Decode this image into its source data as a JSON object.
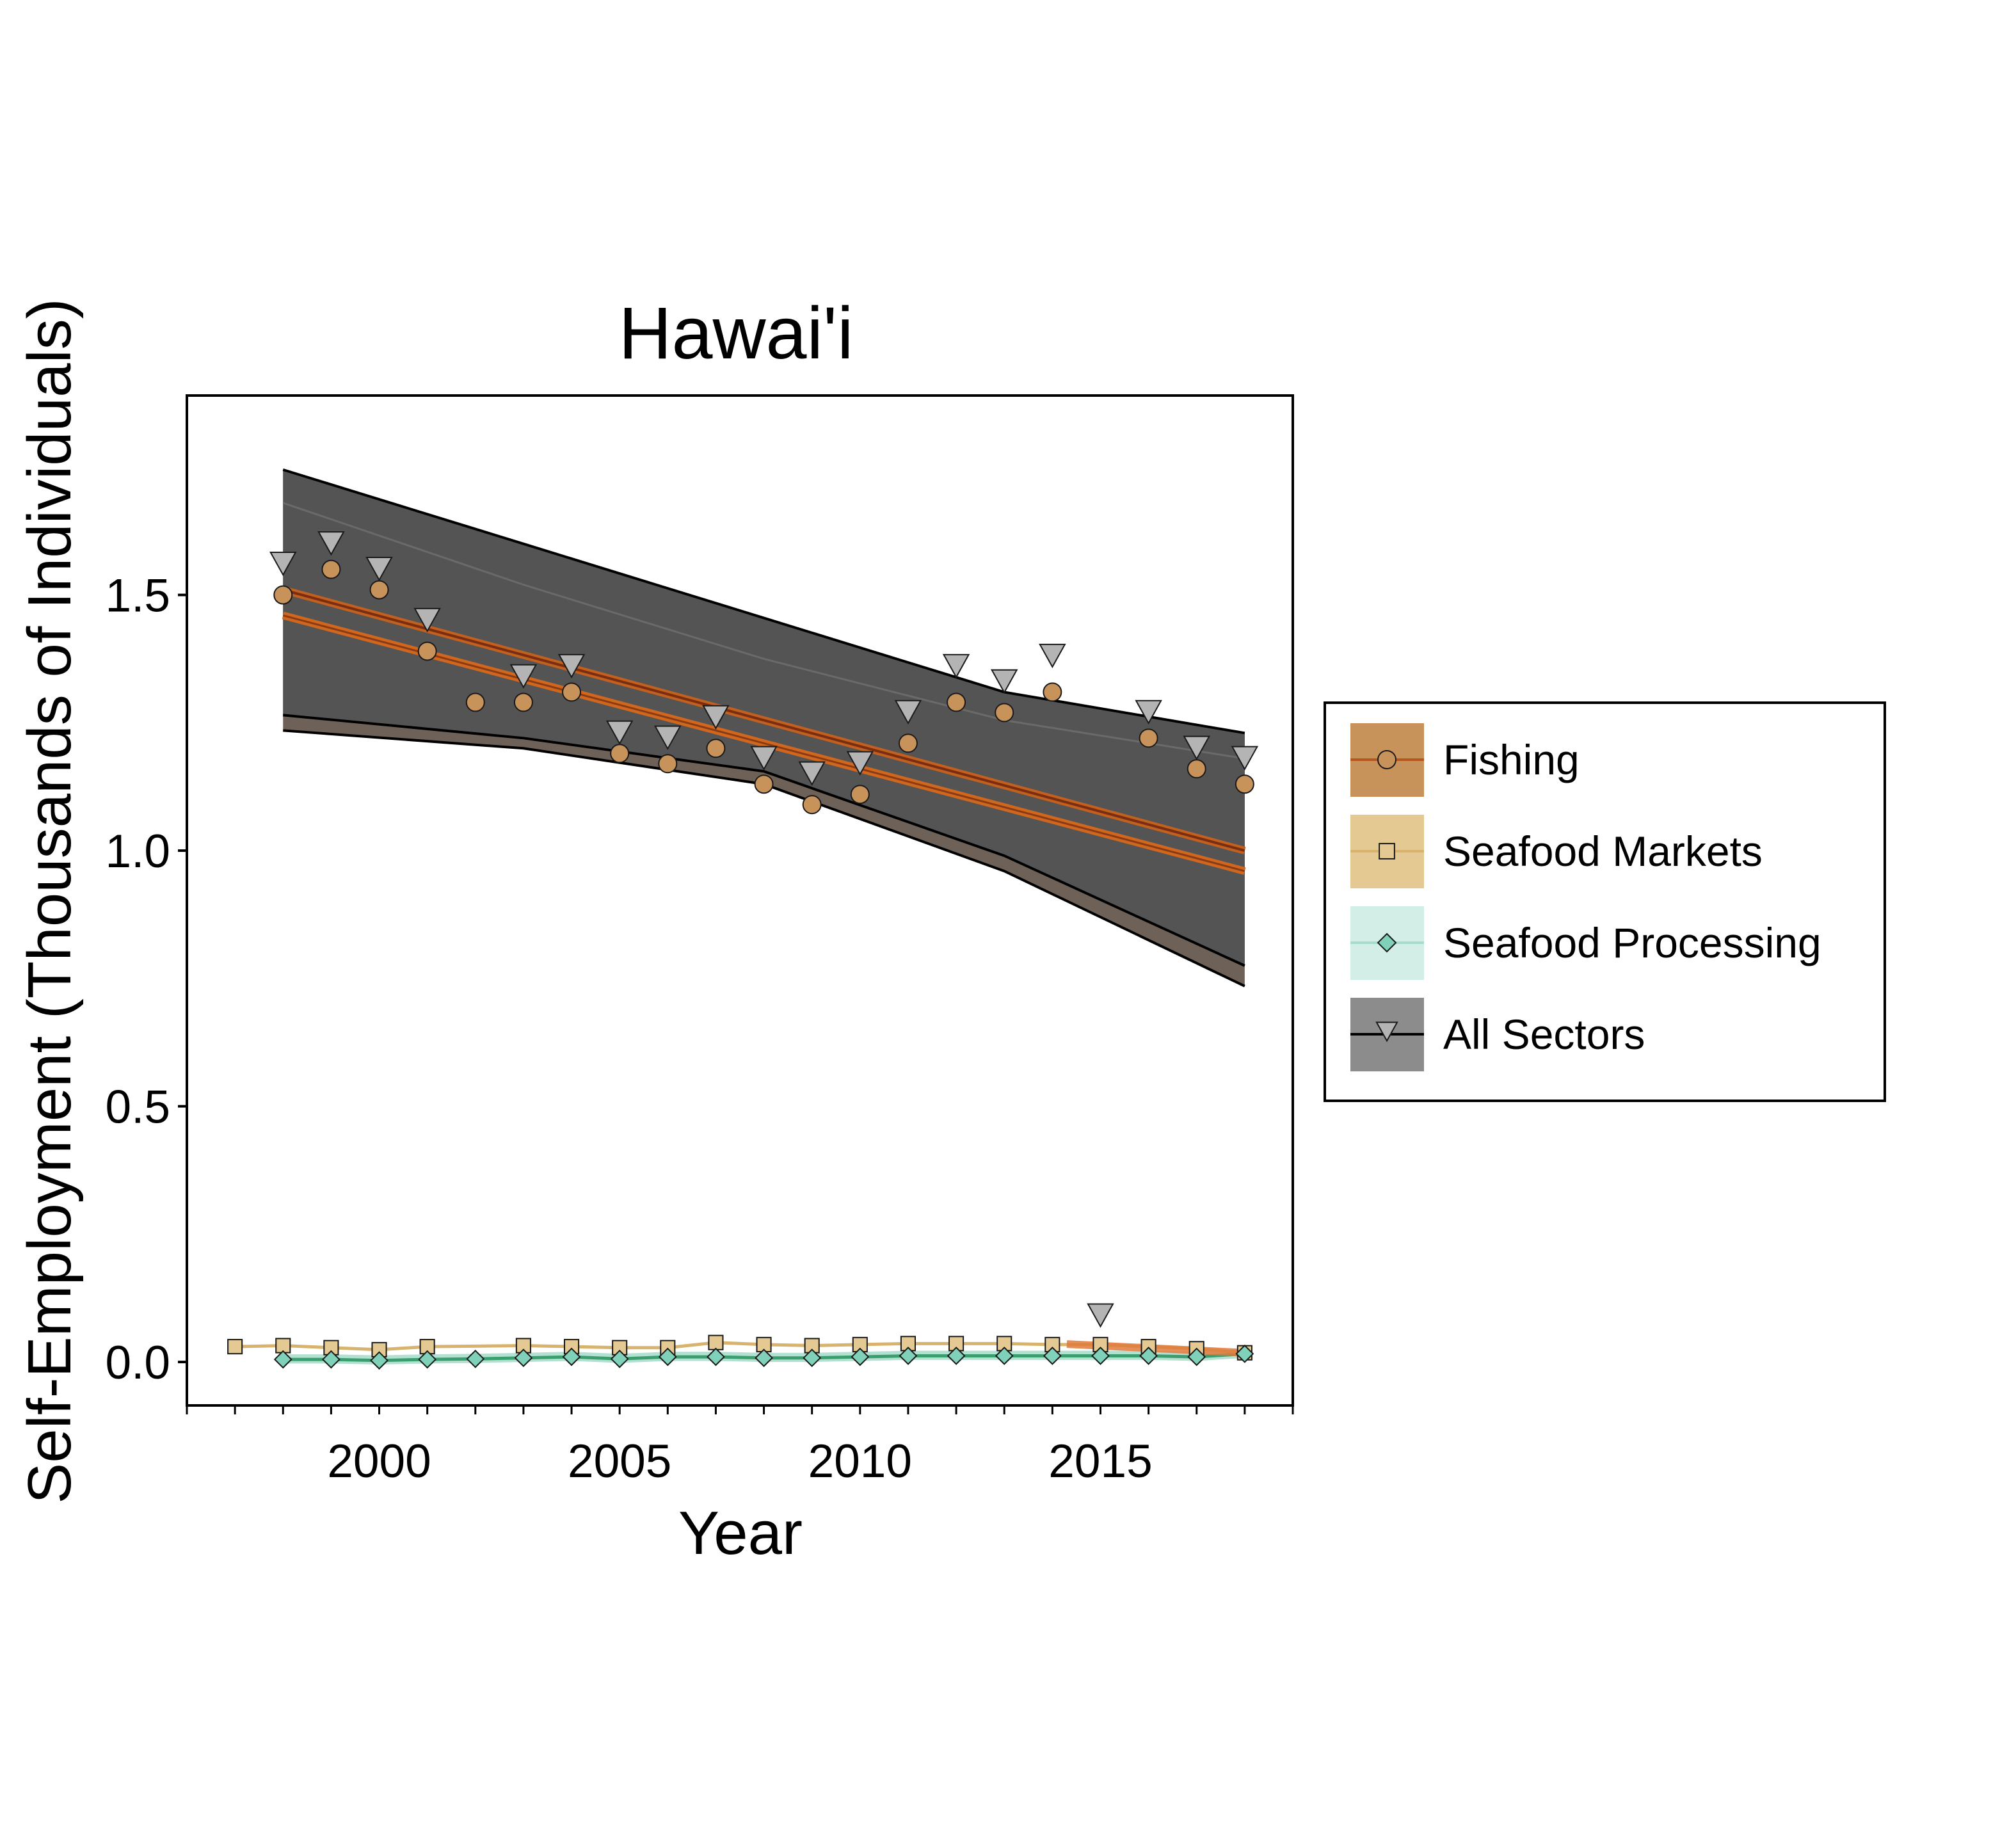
{
  "chart_data": {
    "type": "line",
    "title": "Hawai'i",
    "xlabel": "Year",
    "ylabel": "Self-Employment (Thousands of Individuals)",
    "xlim": [
      1996,
      2019
    ],
    "ylim": [
      -0.085,
      1.89
    ],
    "x_ticks": [
      2000,
      2005,
      2010,
      2015
    ],
    "y_ticks": [
      0.0,
      0.5,
      1.0,
      1.5
    ],
    "y_tick_labels": [
      "0.0",
      "0.5",
      "1.0",
      "1.5"
    ],
    "grid": false,
    "legend_position": "right",
    "series": [
      {
        "name": "Fishing",
        "marker": "circle",
        "color": "#c8935a",
        "line_color": "#b5561f",
        "x": [
          1998,
          1999,
          2000,
          2001,
          2002,
          2003,
          2004,
          2005,
          2006,
          2007,
          2008,
          2009,
          2010,
          2011,
          2012,
          2013,
          2014,
          2016,
          2017,
          2018
        ],
        "values": [
          1.5,
          1.55,
          1.51,
          1.39,
          1.29,
          1.29,
          1.31,
          1.19,
          1.17,
          1.2,
          1.13,
          1.09,
          1.11,
          1.21,
          1.29,
          1.27,
          1.31,
          1.22,
          1.16,
          1.13
        ],
        "trend": [
          [
            1998,
            1.51
          ],
          [
            2018,
            1.0
          ]
        ],
        "trend2": [
          [
            1998,
            1.46
          ],
          [
            2018,
            0.96
          ]
        ]
      },
      {
        "name": "Seafood Markets",
        "marker": "square",
        "color": "#e5c992",
        "line_color": "#d7b36e",
        "x": [
          1997,
          1998,
          1999,
          2000,
          2001,
          2003,
          2004,
          2005,
          2006,
          2007,
          2008,
          2009,
          2010,
          2011,
          2012,
          2013,
          2014,
          2015,
          2016,
          2017,
          2018
        ],
        "values": [
          0.03,
          0.032,
          0.028,
          0.024,
          0.03,
          0.032,
          0.03,
          0.028,
          0.028,
          0.038,
          0.034,
          0.032,
          0.034,
          0.036,
          0.036,
          0.036,
          0.034,
          0.034,
          0.03,
          0.026,
          0.018
        ]
      },
      {
        "name": "Seafood Processing",
        "marker": "diamond",
        "color": "#7fd1b9",
        "line_color": "#3b9e6f",
        "x": [
          1998,
          1999,
          2000,
          2001,
          2002,
          2003,
          2004,
          2005,
          2006,
          2007,
          2008,
          2009,
          2010,
          2011,
          2012,
          2013,
          2014,
          2015,
          2016,
          2017,
          2018
        ],
        "values": [
          0.005,
          0.005,
          0.003,
          0.005,
          0.006,
          0.008,
          0.01,
          0.006,
          0.01,
          0.01,
          0.008,
          0.008,
          0.01,
          0.012,
          0.012,
          0.012,
          0.012,
          0.012,
          0.012,
          0.01,
          0.016
        ]
      },
      {
        "name": "All Sectors",
        "marker": "triangle-down",
        "color": "#b4b4b4",
        "line_color": "#000000",
        "x": [
          1998,
          1999,
          2000,
          2001,
          2003,
          2004,
          2005,
          2006,
          2007,
          2008,
          2009,
          2010,
          2011,
          2012,
          2013,
          2014,
          2015,
          2016,
          2017,
          2018
        ],
        "values": [
          1.54,
          1.58,
          1.53,
          1.43,
          1.32,
          1.34,
          1.21,
          1.2,
          1.24,
          1.16,
          1.13,
          1.15,
          1.25,
          1.34,
          1.31,
          1.36,
          0.07,
          1.25,
          1.18,
          1.16
        ],
        "band_outer_upper": [
          [
            1998,
            1.745
          ],
          [
            2003,
            1.6
          ],
          [
            2008,
            1.455
          ],
          [
            2013,
            1.31
          ],
          [
            2018,
            1.23
          ]
        ],
        "band_outer_lower": [
          [
            1998,
            1.235
          ],
          [
            2003,
            1.2
          ],
          [
            2008,
            1.13
          ],
          [
            2013,
            0.96
          ],
          [
            2018,
            0.735
          ]
        ],
        "band_inner_upper": [
          [
            1998,
            1.68
          ],
          [
            2003,
            1.52
          ],
          [
            2008,
            1.375
          ],
          [
            2013,
            1.255
          ],
          [
            2018,
            1.18
          ]
        ],
        "band_inner_lower": [
          [
            1998,
            1.265
          ],
          [
            2003,
            1.22
          ],
          [
            2008,
            1.155
          ],
          [
            2013,
            0.99
          ],
          [
            2018,
            0.775
          ]
        ]
      }
    ]
  }
}
